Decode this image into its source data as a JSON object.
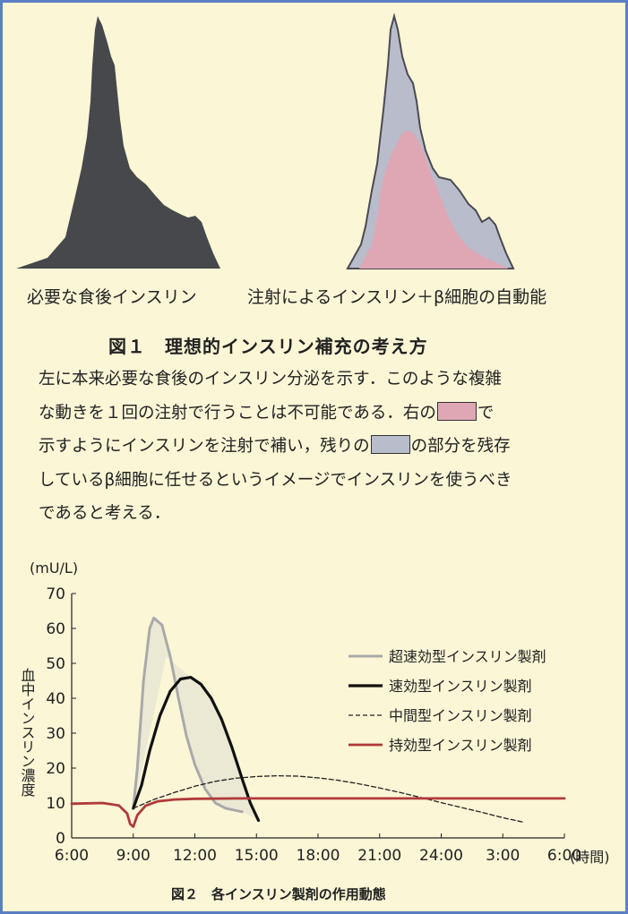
{
  "figure1": {
    "left_label": "必要な食後インスリン",
    "right_label": "注射によるインスリン＋β細胞の自動能",
    "title": "図１　理想的インスリン補充の考え方",
    "description": {
      "line1": "左に本来必要な食後のインスリン分泌を示す．このような複雑",
      "line2a": "な動きを１回の注射で行うことは不可能である．右の",
      "line2b": "で",
      "line3a": "示すようにインスリンを注射で補い，残りの",
      "line3b": "の部分を残存",
      "line4": "しているβ細胞に任せるというイメージでインスリンを使うべき",
      "line5": "であると考える．"
    },
    "colors": {
      "dark": "#46484b",
      "gray": "#b9bccb",
      "pink": "#dfa7b4"
    }
  },
  "chart_data": {
    "type": "line",
    "ylabel_unit": "(mU/L)",
    "ylabel": "血中インスリン濃度",
    "xlabel_unit": "(時間)",
    "ylim": [
      0,
      70
    ],
    "y_ticks": [
      "0",
      "10",
      "20",
      "30",
      "40",
      "50",
      "60",
      "70"
    ],
    "x_ticks": [
      "6:00",
      "9:00",
      "12:00",
      "15:00",
      "18:00",
      "21:00",
      "24:00",
      "3:00",
      "6:00"
    ],
    "grid": false,
    "legend_position": "right",
    "series": [
      {
        "name": "超速効型インスリン製剤",
        "color": "#a9a9a9",
        "style": "solid",
        "x": [
          9.0,
          9.2,
          9.5,
          9.8,
          10.0,
          10.4,
          10.8,
          11.2,
          11.6,
          12.0,
          12.5,
          13.0,
          13.5,
          14.3
        ],
        "y": [
          8.5,
          20,
          45,
          60,
          63,
          61,
          52,
          40,
          29,
          21,
          14,
          10,
          8.5,
          7.5
        ]
      },
      {
        "name": "速効型インスリン製剤",
        "color": "#111111",
        "style": "solid",
        "x": [
          9.0,
          9.4,
          9.8,
          10.3,
          10.8,
          11.3,
          11.8,
          12.3,
          12.8,
          13.3,
          13.8,
          14.3,
          14.7,
          15.1
        ],
        "y": [
          8.5,
          15,
          25,
          35,
          42,
          45.5,
          46,
          44,
          40,
          34,
          26,
          17,
          10,
          5
        ]
      },
      {
        "name": "中間型インスリン製剤",
        "color": "#222222",
        "style": "dashed",
        "x": [
          9.0,
          10.0,
          11.0,
          12.0,
          13.0,
          14.0,
          15.0,
          16.0,
          17.0,
          18.0,
          19.0,
          20.0,
          21.0,
          22.0,
          23.0,
          24.0,
          25.0,
          26.0,
          27.0,
          28.0
        ],
        "y": [
          8.5,
          11,
          13,
          14.8,
          16.2,
          17.1,
          17.6,
          17.8,
          17.7,
          17.2,
          16.5,
          15.5,
          14.3,
          13,
          11.6,
          10.1,
          8.7,
          7.3,
          5.8,
          4.5
        ]
      },
      {
        "name": "持効型インスリン製剤",
        "color": "#b03a3a",
        "style": "solid",
        "x": [
          6.0,
          7.5,
          8.3,
          8.7,
          8.85,
          9.0,
          9.2,
          9.6,
          10.2,
          11.0,
          12.0,
          14.0,
          18.0,
          24.0,
          30.0
        ],
        "y": [
          9.8,
          10,
          9.3,
          7,
          4,
          3.2,
          6.5,
          9.2,
          10.5,
          11,
          11.2,
          11.3,
          11.3,
          11.3,
          11.3
        ]
      }
    ]
  },
  "figure2": {
    "caption": "図２　各インスリン製剤の作用動態"
  }
}
